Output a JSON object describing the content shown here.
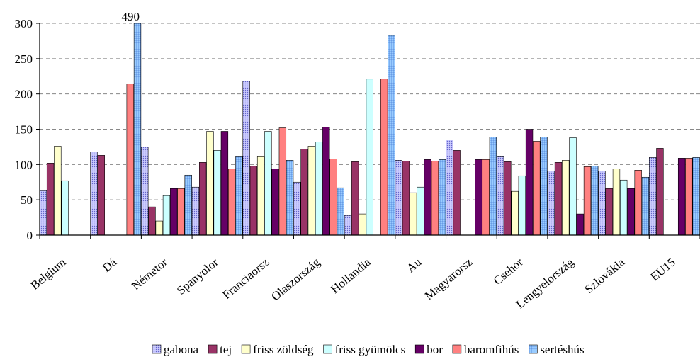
{
  "chart_data": {
    "type": "bar",
    "ylim": [
      0,
      300
    ],
    "yticks": [
      0,
      50,
      100,
      150,
      200,
      250,
      300
    ],
    "grid": true,
    "legend_position": "bottom",
    "categories": [
      "Belgium",
      "Dá",
      "Németor",
      "Spanyolor",
      "Franciaorsz",
      "Olaszország",
      "Hollandia",
      "Au",
      "Magyarorsz",
      "Csehor",
      "Lengyelország",
      "Szlovákia",
      "EU15"
    ],
    "series": [
      {
        "name": "gabona",
        "color": "#ccccff",
        "pattern": "dots",
        "values": [
          63,
          118,
          125,
          68,
          218,
          75,
          28,
          106,
          135,
          112,
          91,
          91,
          110
        ]
      },
      {
        "name": "tej",
        "color": "#993366",
        "pattern": "solid",
        "values": [
          102,
          113,
          40,
          103,
          98,
          122,
          104,
          105,
          120,
          104,
          103,
          66,
          123
        ]
      },
      {
        "name": "friss zöldség",
        "color": "#ffffcc",
        "pattern": "solid",
        "values": [
          126,
          null,
          20,
          147,
          112,
          126,
          30,
          60,
          null,
          62,
          106,
          94,
          null
        ]
      },
      {
        "name": "friss gyümölcs",
        "color": "#ccffff",
        "pattern": "solid",
        "values": [
          77,
          null,
          56,
          120,
          147,
          132,
          221,
          68,
          null,
          84,
          138,
          78,
          null
        ]
      },
      {
        "name": "bor",
        "color": "#660066",
        "pattern": "solid",
        "values": [
          null,
          null,
          66,
          147,
          94,
          153,
          null,
          107,
          107,
          150,
          30,
          66,
          109
        ]
      },
      {
        "name": "baromfihús",
        "color": "#ff8080",
        "pattern": "solid",
        "values": [
          null,
          214,
          66,
          94,
          152,
          108,
          221,
          105,
          107,
          133,
          97,
          92,
          109
        ]
      },
      {
        "name": "sertéshús",
        "color": "#99ccff",
        "pattern": "grid",
        "values": [
          null,
          300,
          85,
          112,
          106,
          67,
          283,
          107,
          139,
          139,
          98,
          82,
          110
        ]
      }
    ],
    "annotations": [
      {
        "text": "490",
        "category": "Dá",
        "series": "sertéshús"
      }
    ]
  }
}
